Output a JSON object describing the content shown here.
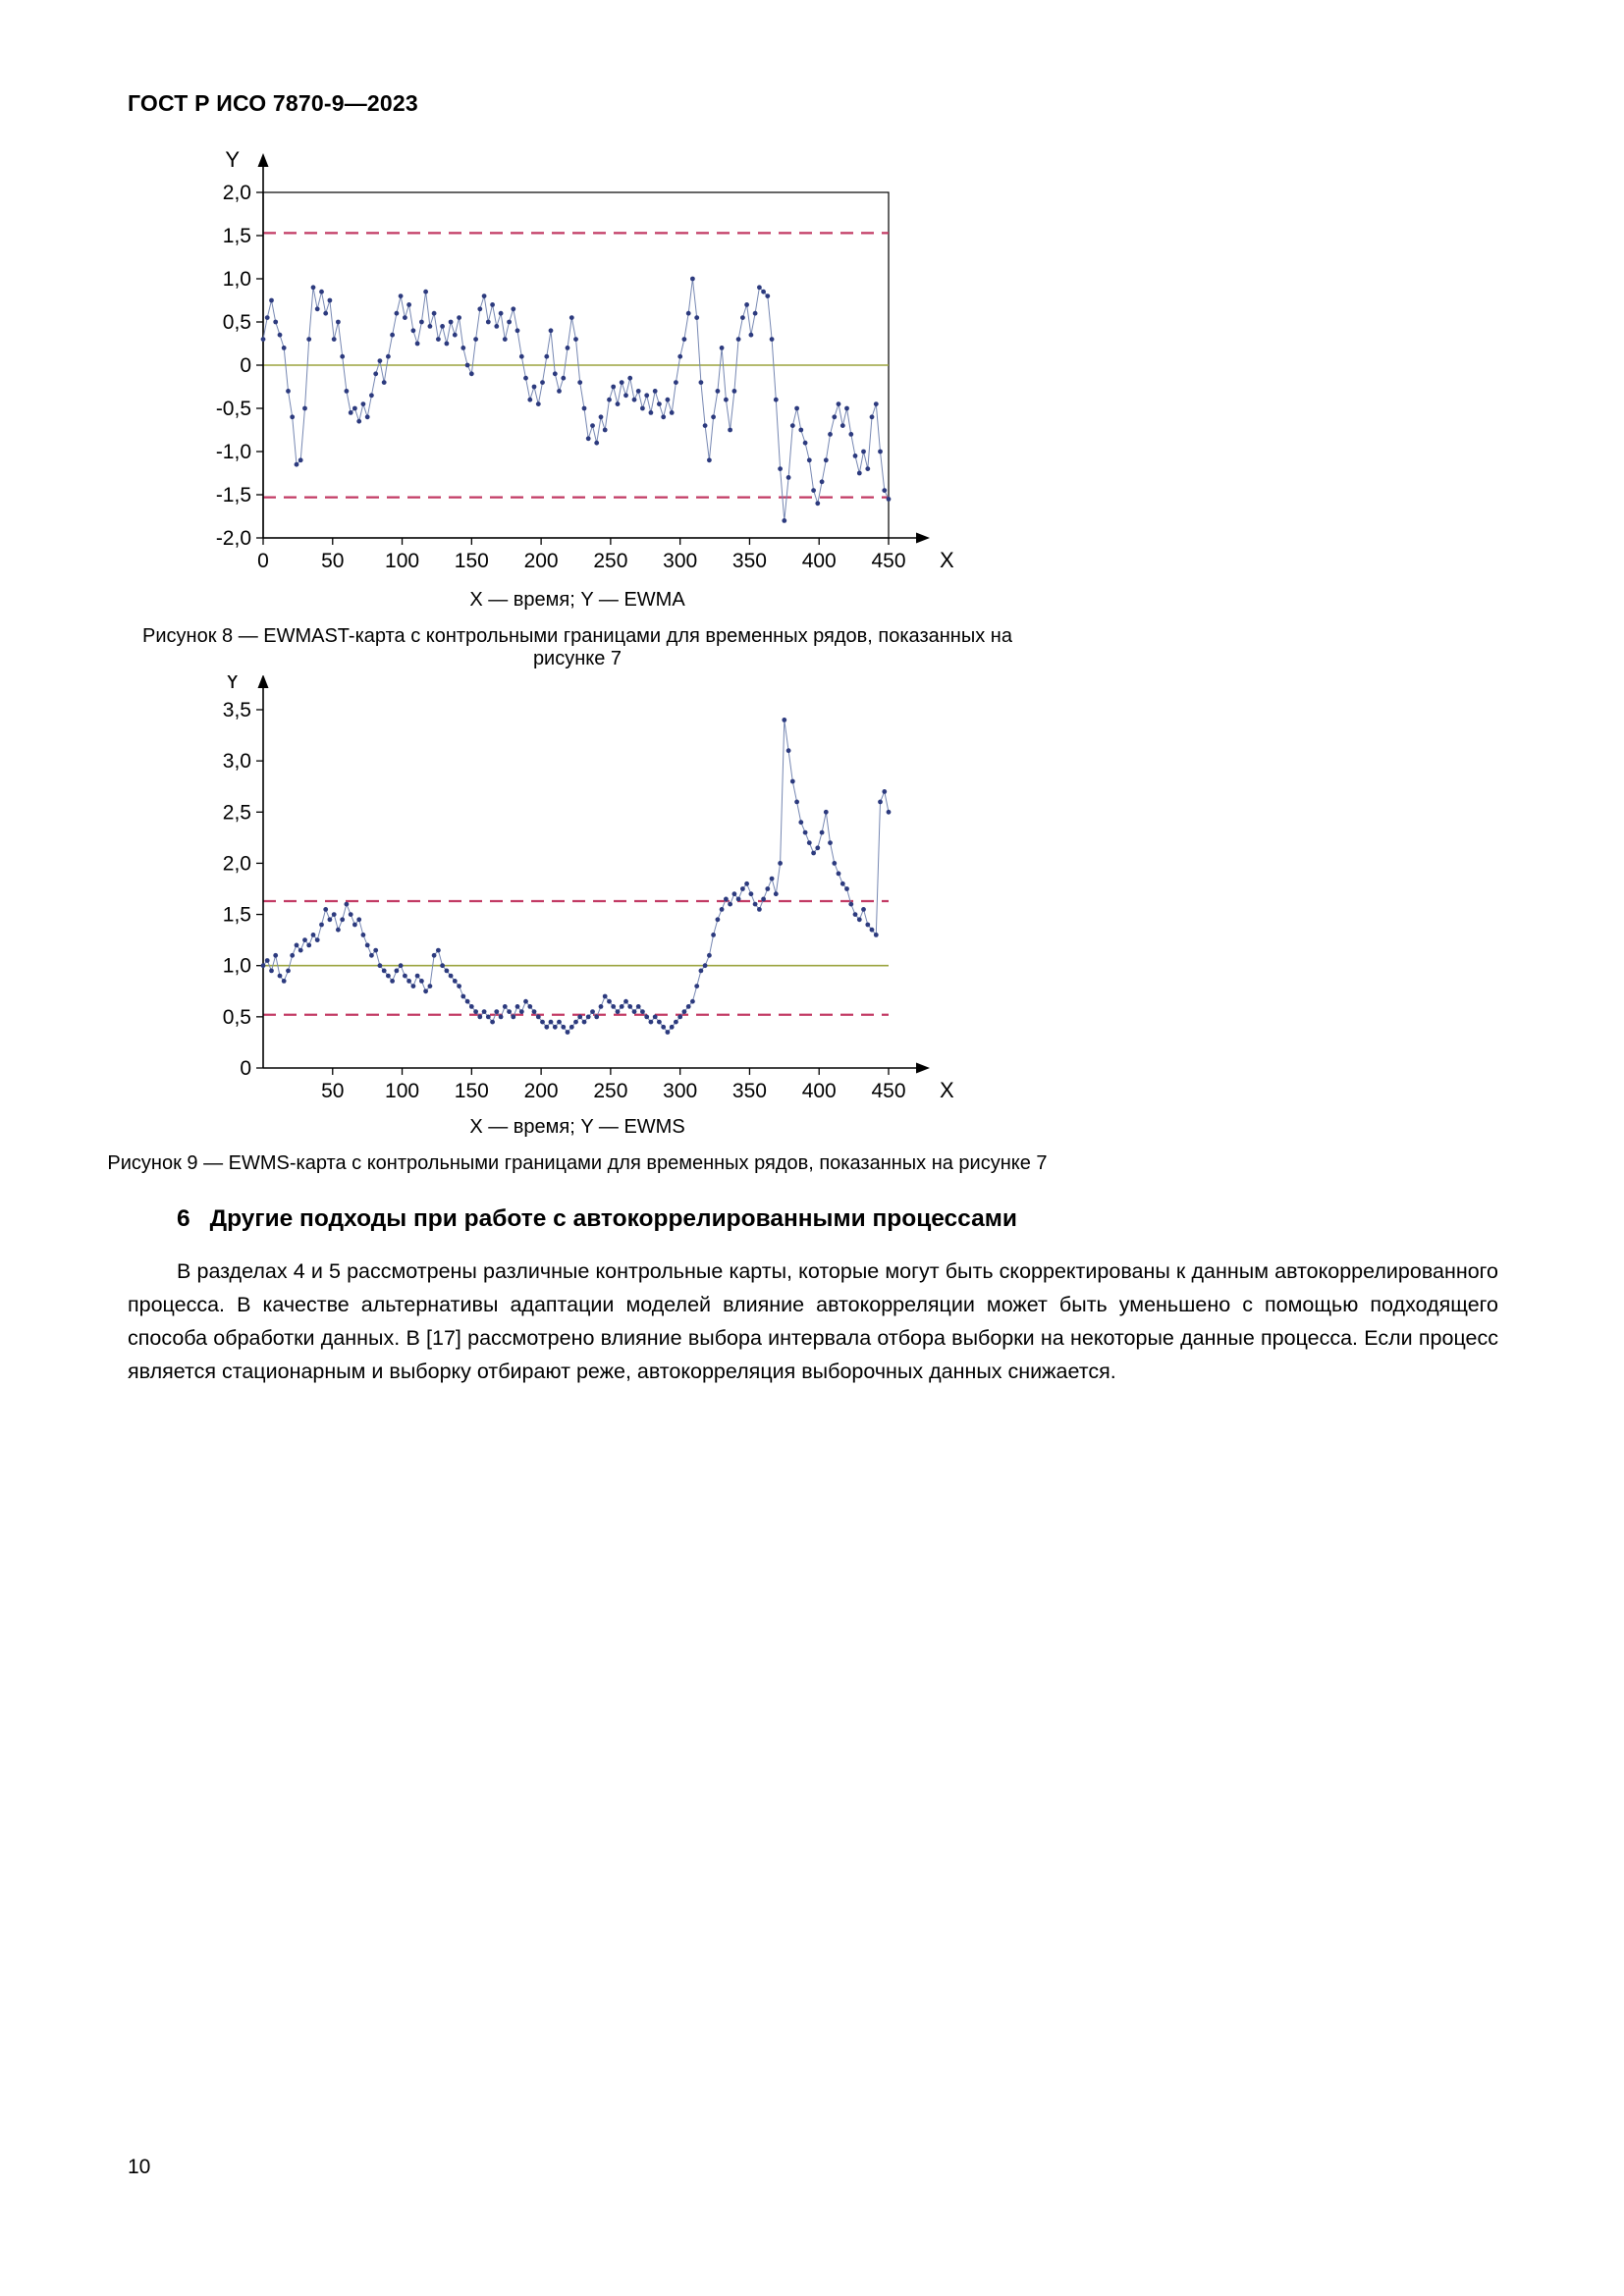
{
  "page": {
    "header": "ГОСТ Р ИСО 7870-9—2023",
    "page_number": "10"
  },
  "figures": {
    "fig8": {
      "axis_caption": "X — время; Y — EWMA",
      "caption": "Рисунок 8 — EWMAST-карта с контрольными границами для временных рядов, показанных на рисунке 7"
    },
    "fig9": {
      "axis_caption": "X — время; Y — EWMS",
      "caption": "Рисунок 9 — EWMS-карта с контрольными границами для временных рядов, показанных на рисунке 7"
    }
  },
  "section": {
    "number": "6",
    "title": "Другие подходы при работе с автокоррелированными процессами",
    "paragraph": "В разделах 4 и 5 рассмотрены различные контрольные карты, которые могут быть скорректированы к данным автокоррелированного процесса. В качестве альтернативы адаптации моделей влияние автокорреляции может быть уменьшено с помощью подходящего способа обработки данных. В [17] рассмотрено влияние выбора интервала отбора выборки на некоторые данные процесса. Если процесс является стационарным и выборку отбирают реже, автокорреляция выборочных данных снижается."
  },
  "colors": {
    "series_marker": "#2c3a7e",
    "series_line": "#7687b2",
    "control_limit": "#c23a64",
    "center_line": "#9ba43f",
    "axis": "#000000"
  },
  "chart_data": [
    {
      "type": "line",
      "name": "EWMAST control chart",
      "xlabel": "X",
      "ylabel": "Y",
      "xlim": [
        0,
        450
      ],
      "ylim": [
        -2.0,
        2.0
      ],
      "xticks": [
        0,
        50,
        100,
        150,
        200,
        250,
        300,
        350,
        400,
        450
      ],
      "yticks": [
        2.0,
        1.5,
        1.0,
        0.5,
        0,
        -0.5,
        -1.0,
        -1.5,
        -2.0
      ],
      "ytick_labels": [
        "2,0",
        "1,5",
        "1,0",
        "0,5",
        "0",
        "-0,5",
        "-1,0",
        "-1,5",
        "-2,0"
      ],
      "center_line": 0,
      "ucl": 1.53,
      "lcl": -1.53,
      "grid": false,
      "legend": false,
      "x_start": 0,
      "x_step": 3,
      "values": [
        0.3,
        0.55,
        0.75,
        0.5,
        0.35,
        0.2,
        -0.3,
        -0.6,
        -1.15,
        -1.1,
        -0.5,
        0.3,
        0.9,
        0.65,
        0.85,
        0.6,
        0.75,
        0.3,
        0.5,
        0.1,
        -0.3,
        -0.55,
        -0.5,
        -0.65,
        -0.45,
        -0.6,
        -0.35,
        -0.1,
        0.05,
        -0.2,
        0.1,
        0.35,
        0.6,
        0.8,
        0.55,
        0.7,
        0.4,
        0.25,
        0.5,
        0.85,
        0.45,
        0.6,
        0.3,
        0.45,
        0.25,
        0.5,
        0.35,
        0.55,
        0.2,
        0.0,
        -0.1,
        0.3,
        0.65,
        0.8,
        0.5,
        0.7,
        0.45,
        0.6,
        0.3,
        0.5,
        0.65,
        0.4,
        0.1,
        -0.15,
        -0.4,
        -0.25,
        -0.45,
        -0.2,
        0.1,
        0.4,
        -0.1,
        -0.3,
        -0.15,
        0.2,
        0.55,
        0.3,
        -0.2,
        -0.5,
        -0.85,
        -0.7,
        -0.9,
        -0.6,
        -0.75,
        -0.4,
        -0.25,
        -0.45,
        -0.2,
        -0.35,
        -0.15,
        -0.4,
        -0.3,
        -0.5,
        -0.35,
        -0.55,
        -0.3,
        -0.45,
        -0.6,
        -0.4,
        -0.55,
        -0.2,
        0.1,
        0.3,
        0.6,
        1.0,
        0.55,
        -0.2,
        -0.7,
        -1.1,
        -0.6,
        -0.3,
        0.2,
        -0.4,
        -0.75,
        -0.3,
        0.3,
        0.55,
        0.7,
        0.35,
        0.6,
        0.9,
        0.85,
        0.8,
        0.3,
        -0.4,
        -1.2,
        -1.8,
        -1.3,
        -0.7,
        -0.5,
        -0.75,
        -0.9,
        -1.1,
        -1.45,
        -1.6,
        -1.35,
        -1.1,
        -0.8,
        -0.6,
        -0.45,
        -0.7,
        -0.5,
        -0.8,
        -1.05,
        -1.25,
        -1.0,
        -1.2,
        -0.6,
        -0.45,
        -1.0,
        -1.45,
        -1.55
      ]
    },
    {
      "type": "line",
      "name": "EWMS control chart",
      "xlabel": "X",
      "ylabel": "Y",
      "xlim": [
        0,
        450
      ],
      "ylim": [
        0,
        3.5
      ],
      "xticks": [
        50,
        100,
        150,
        200,
        250,
        300,
        350,
        400,
        450
      ],
      "yticks": [
        3.5,
        3.0,
        2.5,
        2.0,
        1.5,
        1.0,
        0.5,
        0
      ],
      "ytick_labels": [
        "3,5",
        "3,0",
        "2,5",
        "2,0",
        "1,5",
        "1,0",
        "0,5",
        "0"
      ],
      "center_line": 1.0,
      "ucl": 1.63,
      "lcl": 0.52,
      "grid": false,
      "legend": false,
      "x_start": 0,
      "x_step": 3,
      "values": [
        1.0,
        1.05,
        0.95,
        1.1,
        0.9,
        0.85,
        0.95,
        1.1,
        1.2,
        1.15,
        1.25,
        1.2,
        1.3,
        1.25,
        1.4,
        1.55,
        1.45,
        1.5,
        1.35,
        1.45,
        1.6,
        1.5,
        1.4,
        1.45,
        1.3,
        1.2,
        1.1,
        1.15,
        1.0,
        0.95,
        0.9,
        0.85,
        0.95,
        1.0,
        0.9,
        0.85,
        0.8,
        0.9,
        0.85,
        0.75,
        0.8,
        1.1,
        1.15,
        1.0,
        0.95,
        0.9,
        0.85,
        0.8,
        0.7,
        0.65,
        0.6,
        0.55,
        0.5,
        0.55,
        0.5,
        0.45,
        0.55,
        0.5,
        0.6,
        0.55,
        0.5,
        0.6,
        0.55,
        0.65,
        0.6,
        0.55,
        0.5,
        0.45,
        0.4,
        0.45,
        0.4,
        0.45,
        0.4,
        0.35,
        0.4,
        0.45,
        0.5,
        0.45,
        0.5,
        0.55,
        0.5,
        0.6,
        0.7,
        0.65,
        0.6,
        0.55,
        0.6,
        0.65,
        0.6,
        0.55,
        0.6,
        0.55,
        0.5,
        0.45,
        0.5,
        0.45,
        0.4,
        0.35,
        0.4,
        0.45,
        0.5,
        0.55,
        0.6,
        0.65,
        0.8,
        0.95,
        1.0,
        1.1,
        1.3,
        1.45,
        1.55,
        1.65,
        1.6,
        1.7,
        1.65,
        1.75,
        1.8,
        1.7,
        1.6,
        1.55,
        1.65,
        1.75,
        1.85,
        1.7,
        2.0,
        3.4,
        3.1,
        2.8,
        2.6,
        2.4,
        2.3,
        2.2,
        2.1,
        2.15,
        2.3,
        2.5,
        2.2,
        2.0,
        1.9,
        1.8,
        1.75,
        1.6,
        1.5,
        1.45,
        1.55,
        1.4,
        1.35,
        1.3,
        2.6,
        2.7,
        2.5
      ]
    }
  ]
}
